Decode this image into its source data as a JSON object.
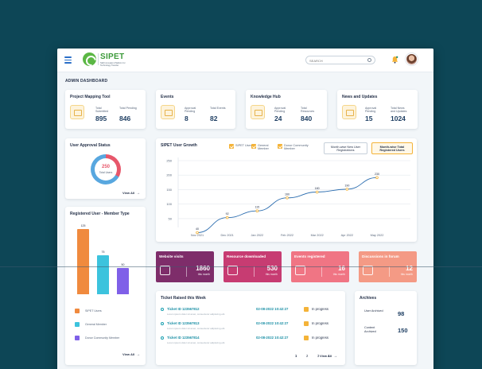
{
  "app": {
    "name": "SIPET",
    "subtitle": "Skill Innovation Platform for Technology Transfer"
  },
  "search": {
    "placeholder": "SEARCH"
  },
  "page_title": "ADMIN DASHBOARD",
  "kpis": [
    {
      "title": "Project Mapping Tool",
      "a_label": "Total Submitted",
      "a_value": "895",
      "b_label": "Total Pending",
      "b_value": "846"
    },
    {
      "title": "Events",
      "a_label": "Approval Pending",
      "a_value": "8",
      "b_label": "Total Events",
      "b_value": "82"
    },
    {
      "title": "Knowledge Hub",
      "a_label": "Approval Pending",
      "a_value": "24",
      "b_label": "Total Resources",
      "b_value": "840"
    },
    {
      "title": "News and Updates",
      "a_label": "Approval Pending",
      "a_value": "15",
      "b_label": "Total News and Updates",
      "b_value": "1024"
    }
  ],
  "approval": {
    "title": "User Approval Status",
    "value": "250",
    "label": "Total Users",
    "view_all": "View All",
    "approved_fraction": 0.67
  },
  "member_type": {
    "title": "Registered User - Member Type",
    "view_all": "View All",
    "bars": [
      {
        "name": "SIPET Users",
        "value": 125,
        "label": "125",
        "color": "#f08a3e"
      },
      {
        "name": "General Member",
        "value": 75,
        "label": "75",
        "color": "#3cc3dd"
      },
      {
        "name": "Donor Community Member",
        "value": 50,
        "label": "50",
        "color": "#7f60e8"
      }
    ]
  },
  "growth": {
    "title": "SIPET User Growth",
    "filters": [
      "SIPET User",
      "General Member",
      "Donor Community Member"
    ],
    "btn_new": "Month-wise New User Registrations",
    "btn_total": "Month-wise Total Registered Users"
  },
  "chart_data": {
    "type": "line",
    "title": "SIPET User Growth",
    "categories": [
      "Nov 2021",
      "Dec 2021",
      "Jan 2022",
      "Feb 2022",
      "Mar 2022",
      "Apr 2022",
      "May 2022"
    ],
    "series": [
      {
        "values": [
          40,
          92,
          115,
          160,
          180,
          190,
          230
        ]
      }
    ],
    "point_labels": [
      "40",
      "92",
      "115",
      "160",
      "180",
      "190",
      "230"
    ],
    "yticks": [
      "250",
      "200",
      "150",
      "100",
      "50"
    ],
    "ylim": [
      25,
      250
    ],
    "line_color": "#2d6eb0",
    "point_color": "#f4b338"
  },
  "tiles": [
    {
      "title": "Website visits",
      "value": "1860",
      "label": "this month",
      "color": "#7e2d6a"
    },
    {
      "title": "Resource downloaded",
      "value": "530",
      "label": "this month",
      "color": "#c73c72"
    },
    {
      "title": "Events registered",
      "value": "16",
      "label": "this month",
      "color": "#f07584"
    },
    {
      "title": "Discussions in forum",
      "value": "12",
      "label": "this month",
      "color": "#f49a85"
    }
  ],
  "tickets": {
    "title": "Ticket Raised this Week",
    "rows": [
      {
        "id": "Ticket ID 123567812",
        "desc": "Lorem ipsum dolor sit amet, consectetur adipiscing elit.",
        "date": "02-08-2022 10:42:27",
        "status": "In progress"
      },
      {
        "id": "Ticket ID 123567813",
        "desc": "Lorem ipsum dolor sit amet, consectetur adipiscing elit.",
        "date": "02-08-2022 10:42:27",
        "status": "In progress"
      },
      {
        "id": "Ticket ID 123567814",
        "desc": "Lorem ipsum dolor sit amet, consectetur adipiscing elit.",
        "date": "02-08-2022 10:42:27",
        "status": "In progress"
      }
    ],
    "pages": [
      "1",
      "2",
      "3",
      "4"
    ],
    "view_all": "View All"
  },
  "archives": {
    "title": "Archives",
    "rows": [
      {
        "label": "User Archived",
        "value": "98"
      },
      {
        "label": "Content Archived",
        "value": "150"
      }
    ]
  }
}
